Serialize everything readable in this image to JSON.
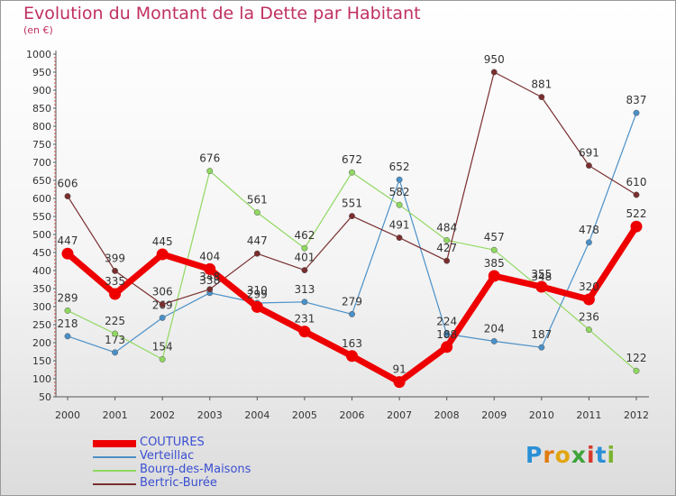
{
  "header": {
    "title": "Evolution du Montant de la Dette par Habitant",
    "subtitle": "(en €)"
  },
  "logo": {
    "text": "Proxiti",
    "letters": [
      "P",
      "r",
      "o",
      "x",
      "i",
      "t",
      "i"
    ]
  },
  "colors": {
    "title": "#c03060",
    "legend_text": "#3a4fd1",
    "axis": "#555555"
  },
  "chart_data": {
    "type": "line",
    "title": "Evolution du Montant de la Dette par Habitant",
    "subtitle": "(en €)",
    "xlabel": "",
    "ylabel": "",
    "ylim": [
      50,
      1000
    ],
    "yticks": [
      50,
      100,
      150,
      200,
      250,
      300,
      350,
      400,
      450,
      500,
      550,
      600,
      650,
      700,
      750,
      800,
      850,
      900,
      950,
      1000
    ],
    "grid": false,
    "legend_position": "bottom-left",
    "categories": [
      "2000",
      "2001",
      "2002",
      "2003",
      "2004",
      "2005",
      "2006",
      "2007",
      "2008",
      "2009",
      "2010",
      "2011",
      "2012"
    ],
    "series": [
      {
        "name": "COUTURES",
        "color": "#ee0000",
        "values": [
          447,
          335,
          445,
          404,
          299,
          231,
          163,
          91,
          188,
          385,
          355,
          320,
          522
        ],
        "labels": [
          "447",
          "335",
          "445",
          "404",
          "299",
          "231",
          "163",
          "91",
          "188",
          "385",
          "355",
          "320",
          "522"
        ]
      },
      {
        "name": "Verteillac",
        "color": "#4a90c8",
        "values": [
          218,
          173,
          269,
          338,
          310,
          313,
          279,
          652,
          224,
          204,
          187,
          478,
          837
        ],
        "labels": [
          "218",
          "173",
          "269",
          "338",
          "310",
          "313",
          "279",
          "652",
          "224",
          "204",
          "187",
          "478",
          "837"
        ]
      },
      {
        "name": "Bourg-des-Maisons",
        "color": "#90d860",
        "values": [
          289,
          225,
          154,
          676,
          561,
          462,
          672,
          582,
          484,
          457,
          348,
          236,
          122
        ],
        "labels": [
          "289",
          "225",
          "154",
          "676",
          "561",
          "462",
          "672",
          "582",
          "484",
          "457",
          "348",
          "236",
          "122"
        ]
      },
      {
        "name": "Bertric-Burée",
        "color": "#7a2e2e",
        "values": [
          606,
          399,
          306,
          348,
          447,
          401,
          551,
          491,
          427,
          950,
          881,
          691,
          610
        ],
        "labels": [
          "606",
          "399",
          "306",
          "348",
          "447",
          "401",
          "551",
          "491",
          "427",
          "950",
          "881",
          "691",
          "610"
        ]
      }
    ]
  }
}
